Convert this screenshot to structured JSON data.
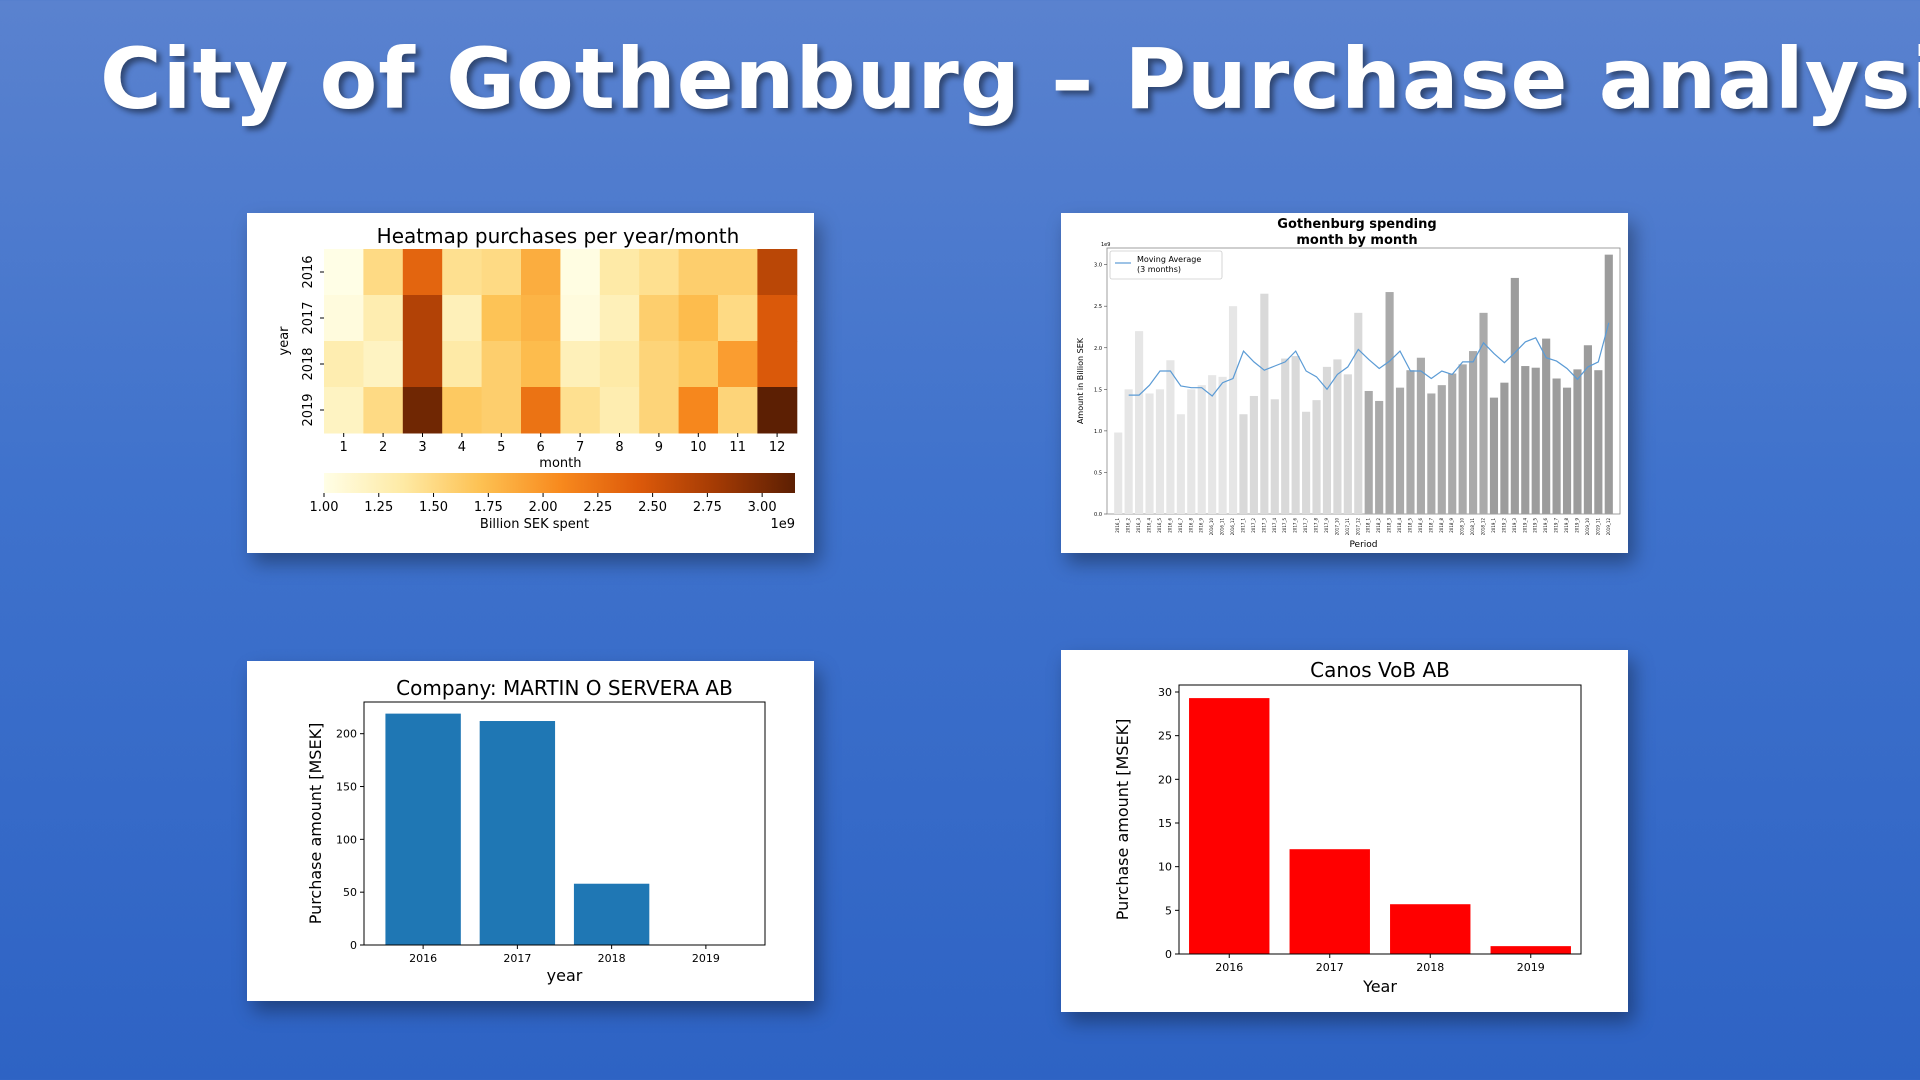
{
  "slide": {
    "title": "City of Gothenburg – Purchase analysis"
  },
  "chart_data": [
    {
      "id": "heatmap",
      "type": "heatmap",
      "title": "Heatmap purchases per year/month",
      "xlabel": "month",
      "ylabel": "year",
      "x": [
        "1",
        "2",
        "3",
        "4",
        "5",
        "6",
        "7",
        "8",
        "9",
        "10",
        "11",
        "12"
      ],
      "y": [
        "2016",
        "2017",
        "2018",
        "2019"
      ],
      "values": [
        [
          1.0,
          1.5,
          2.35,
          1.45,
          1.5,
          1.85,
          1.02,
          1.35,
          1.45,
          1.6,
          1.6,
          2.65
        ],
        [
          1.05,
          1.3,
          2.7,
          1.25,
          1.7,
          1.8,
          1.05,
          1.25,
          1.6,
          1.75,
          1.5,
          2.45
        ],
        [
          1.3,
          1.2,
          2.7,
          1.35,
          1.6,
          1.75,
          1.25,
          1.35,
          1.55,
          1.65,
          1.95,
          2.45
        ],
        [
          1.2,
          1.5,
          3.05,
          1.65,
          1.6,
          2.25,
          1.45,
          1.3,
          1.55,
          2.1,
          1.55,
          3.15
        ]
      ],
      "colorbar": {
        "label": "Billion SEK spent",
        "ticks": [
          "1.00",
          "1.25",
          "1.50",
          "1.75",
          "2.00",
          "2.25",
          "2.50",
          "2.75",
          "3.00"
        ],
        "range": [
          1.0,
          3.15
        ],
        "offset_label": "1e9"
      },
      "colormap": [
        "#fffee6",
        "#feeaa5",
        "#fdc152",
        "#f88a1e",
        "#dd5a0a",
        "#a33a04",
        "#5c1f03"
      ]
    },
    {
      "id": "spending",
      "type": "bar",
      "title": "Gothenburg spending\nmonth by month",
      "xlabel": "Period",
      "ylabel": "Amount in Billion SEK",
      "offset_label": "1e9",
      "yticks": [
        "0.0",
        "0.5",
        "1.0",
        "1.5",
        "2.0",
        "2.5",
        "3.0"
      ],
      "ylim": [
        0,
        3.2
      ],
      "categories": [
        "2016_1",
        "2016_2",
        "2016_3",
        "2016_4",
        "2016_5",
        "2016_6",
        "2016_7",
        "2016_8",
        "2016_9",
        "2016_10",
        "2016_11",
        "2016_12",
        "2017_1",
        "2017_2",
        "2017_3",
        "2017_4",
        "2017_5",
        "2017_6",
        "2017_7",
        "2017_8",
        "2017_9",
        "2017_10",
        "2017_11",
        "2017_12",
        "2018_1",
        "2018_2",
        "2018_3",
        "2018_4",
        "2018_5",
        "2018_6",
        "2018_7",
        "2018_8",
        "2018_9",
        "2018_10",
        "2018_11",
        "2018_12",
        "2019_1",
        "2019_2",
        "2019_3",
        "2019_4",
        "2019_5",
        "2019_6",
        "2019_7",
        "2019_8",
        "2019_9",
        "2019_10",
        "2019_11",
        "2019_12"
      ],
      "values": [
        0.98,
        1.5,
        2.2,
        1.45,
        1.5,
        1.85,
        1.2,
        1.5,
        1.55,
        1.67,
        1.65,
        2.5,
        1.2,
        1.42,
        2.65,
        1.38,
        1.87,
        1.9,
        1.23,
        1.37,
        1.77,
        1.86,
        1.68,
        2.42,
        1.48,
        1.36,
        2.67,
        1.52,
        1.73,
        1.88,
        1.45,
        1.55,
        1.69,
        1.8,
        1.96,
        2.42,
        1.4,
        1.58,
        2.84,
        1.78,
        1.76,
        2.11,
        1.63,
        1.52,
        1.74,
        2.03,
        1.73,
        3.12
      ],
      "bar_colors_by_year": {
        "2016": "#e6e6e6",
        "2017": "#d9d9d9",
        "2018": "#aaaaaa",
        "2019": "#9c9c9c"
      },
      "series": [
        {
          "name": "Moving Average\n(3 months)",
          "color": "#5b9bd5",
          "values": [
            null,
            1.43,
            1.43,
            1.55,
            1.72,
            1.72,
            1.54,
            1.52,
            1.52,
            1.42,
            1.58,
            1.63,
            1.96,
            1.83,
            1.73,
            1.78,
            1.83,
            1.96,
            1.72,
            1.65,
            1.5,
            1.68,
            1.77,
            1.98,
            1.86,
            1.75,
            1.84,
            1.96,
            1.72,
            1.72,
            1.63,
            1.72,
            1.68,
            1.83,
            1.83,
            2.06,
            1.93,
            1.82,
            1.94,
            2.07,
            2.12,
            1.88,
            1.84,
            1.75,
            1.62,
            1.77,
            1.83,
            2.3
          ]
        }
      ],
      "legend": "upper-left"
    },
    {
      "id": "servera",
      "type": "bar",
      "title": "Company: MARTIN O SERVERA AB",
      "xlabel": "year",
      "ylabel": "Purchase amount [MSEK]",
      "categories": [
        "2016",
        "2017",
        "2018",
        "2019"
      ],
      "values": [
        219,
        212,
        58,
        0
      ],
      "yticks": [
        "0",
        "50",
        "100",
        "150",
        "200"
      ],
      "ylim": [
        0,
        230
      ],
      "color": "#1f77b4"
    },
    {
      "id": "canos",
      "type": "bar",
      "title": "Canos VoB AB",
      "xlabel": "Year",
      "ylabel": "Purchase amount [MSEK]",
      "categories": [
        "2016",
        "2017",
        "2018",
        "2019"
      ],
      "values": [
        29.3,
        12.0,
        5.7,
        0.9
      ],
      "yticks": [
        "0",
        "5",
        "10",
        "15",
        "20",
        "25",
        "30"
      ],
      "ylim": [
        0,
        30.8
      ],
      "color": "#ff0000"
    }
  ]
}
